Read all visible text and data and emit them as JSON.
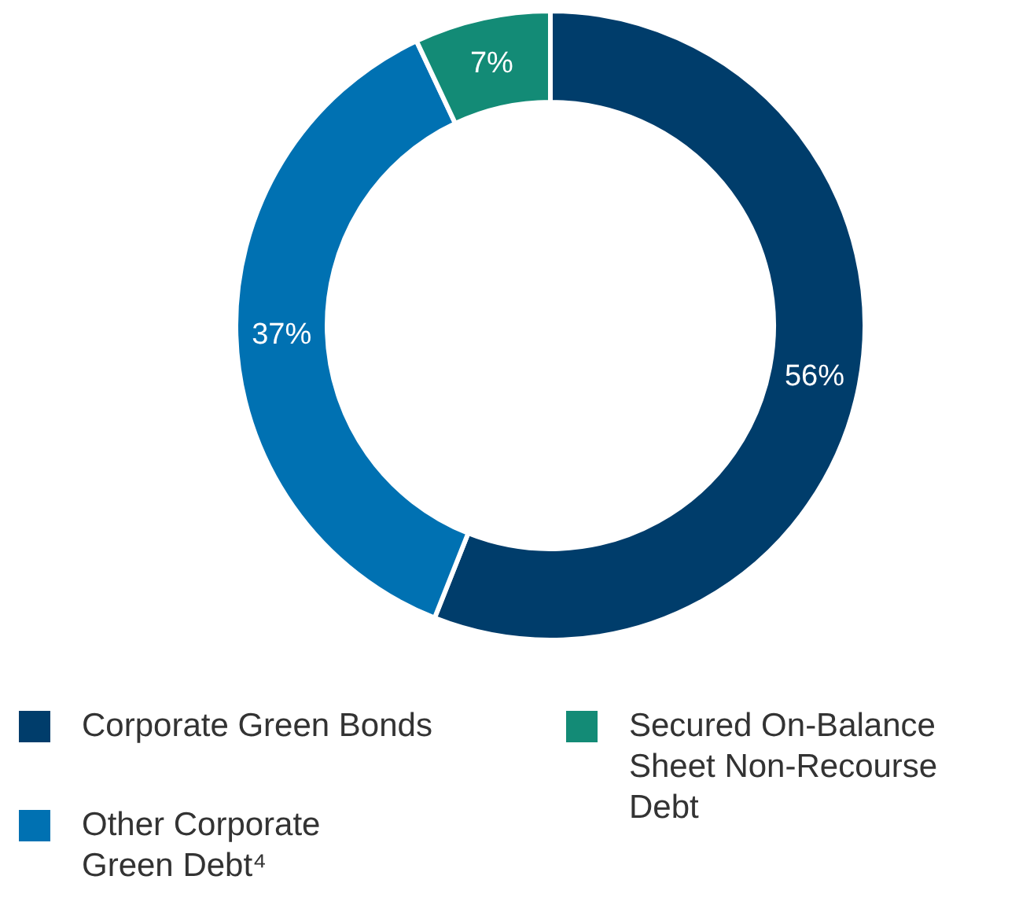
{
  "chart_data": {
    "type": "donut",
    "categories": [
      "Corporate Green Bonds",
      "Other Corporate Green Debt⁴",
      "Secured On-Balance Sheet Non-Recourse Debt"
    ],
    "values": [
      56,
      37,
      7
    ],
    "colors": [
      "#003d6b",
      "#0071b2",
      "#138b76"
    ],
    "value_labels": [
      "56%",
      "37%",
      "7%"
    ],
    "legend": "bottom"
  }
}
